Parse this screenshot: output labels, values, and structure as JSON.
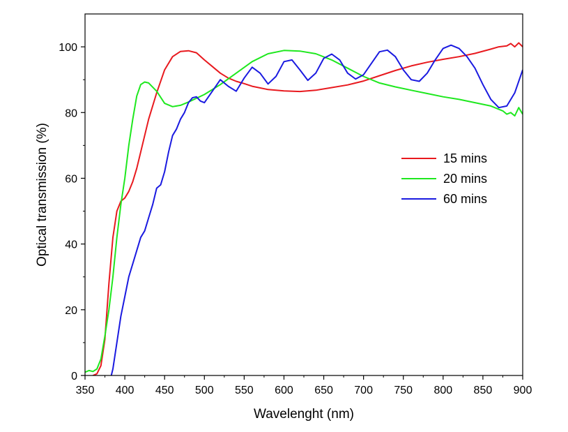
{
  "chart_data": {
    "type": "line",
    "title": "",
    "xlabel": "Wavelenght (nm)",
    "ylabel": "Optical transmission (%)",
    "xlim": [
      350,
      900
    ],
    "ylim": [
      0,
      110
    ],
    "xticks": [
      350,
      400,
      450,
      500,
      550,
      600,
      650,
      700,
      750,
      800,
      850,
      900
    ],
    "yticks": [
      0,
      20,
      40,
      60,
      80,
      100
    ],
    "grid": false,
    "legend_position": "right",
    "series": [
      {
        "name": "15 mins",
        "color": "#e8191e",
        "x": [
          360,
          365,
          370,
          375,
          380,
          385,
          390,
          395,
          400,
          405,
          410,
          415,
          420,
          425,
          430,
          440,
          450,
          460,
          470,
          480,
          490,
          500,
          510,
          520,
          530,
          540,
          550,
          560,
          580,
          600,
          620,
          640,
          660,
          680,
          700,
          720,
          740,
          760,
          780,
          800,
          820,
          840,
          860,
          870,
          880,
          885,
          890,
          895,
          900
        ],
        "y": [
          0,
          0.5,
          3,
          11,
          28,
          42,
          50,
          53,
          54,
          56,
          59,
          63,
          68,
          73,
          78,
          86,
          93,
          97,
          98.6,
          98.8,
          98.2,
          96,
          94,
          92,
          90.5,
          89.5,
          88.8,
          88,
          87,
          86.6,
          86.4,
          86.8,
          87.6,
          88.4,
          89.6,
          91.2,
          92.8,
          94.2,
          95.3,
          96.2,
          97,
          98,
          99.3,
          100,
          100.3,
          101,
          100,
          101.2,
          100
        ]
      },
      {
        "name": "20 mins",
        "color": "#1ee81e",
        "x": [
          350,
          355,
          360,
          365,
          370,
          375,
          380,
          385,
          390,
          395,
          400,
          405,
          410,
          415,
          420,
          425,
          430,
          440,
          450,
          460,
          470,
          480,
          500,
          520,
          540,
          560,
          580,
          600,
          620,
          640,
          660,
          680,
          700,
          720,
          740,
          760,
          780,
          800,
          820,
          840,
          860,
          875,
          880,
          885,
          890,
          895,
          900
        ],
        "y": [
          1,
          1.5,
          1.2,
          2,
          5,
          12,
          20,
          30,
          42,
          52,
          60,
          70,
          78,
          85,
          88.5,
          89.3,
          89,
          86.5,
          82.8,
          81.8,
          82.2,
          83.2,
          85.5,
          88.5,
          92,
          95.5,
          97.9,
          98.9,
          98.7,
          97.9,
          96,
          93.5,
          91,
          89,
          87.8,
          86.8,
          85.8,
          84.8,
          84,
          83,
          82,
          80.5,
          79.5,
          80,
          79,
          81.5,
          79.5
        ]
      },
      {
        "name": "60 mins",
        "color": "#1a1ae0",
        "x": [
          383,
          385,
          390,
          395,
          400,
          405,
          410,
          415,
          420,
          425,
          430,
          435,
          440,
          445,
          450,
          455,
          460,
          465,
          470,
          475,
          480,
          485,
          490,
          495,
          500,
          510,
          520,
          530,
          540,
          550,
          560,
          570,
          580,
          590,
          600,
          610,
          620,
          630,
          640,
          650,
          660,
          670,
          680,
          690,
          700,
          710,
          720,
          730,
          740,
          750,
          760,
          770,
          780,
          790,
          800,
          810,
          820,
          830,
          840,
          850,
          860,
          870,
          880,
          890,
          900
        ],
        "y": [
          0,
          2,
          10,
          18,
          24,
          30,
          34,
          38,
          42,
          44,
          48,
          52,
          57,
          58,
          62,
          68,
          73,
          75,
          78,
          80,
          83,
          84.5,
          84.8,
          83.5,
          83,
          86.5,
          90,
          88,
          86.5,
          90.5,
          93.8,
          92,
          88.7,
          91,
          95.5,
          96,
          93,
          89.8,
          92,
          96.5,
          97.8,
          96,
          92,
          90.2,
          91.5,
          95,
          98.5,
          99,
          97,
          93,
          90,
          89.5,
          92,
          96,
          99.5,
          100.5,
          99.5,
          97,
          93.5,
          88.5,
          84,
          81.5,
          82,
          86,
          93
        ]
      }
    ]
  }
}
